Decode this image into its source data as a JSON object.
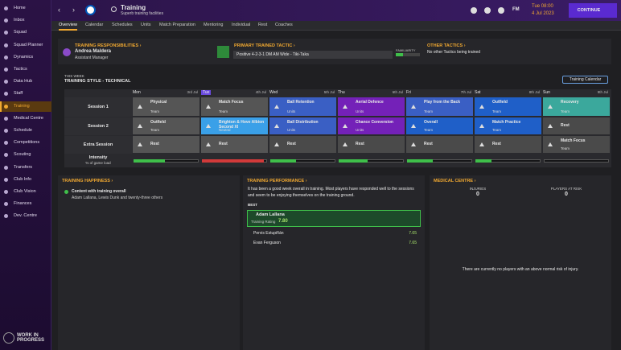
{
  "sidebar": {
    "items": [
      "Home",
      "Inbox",
      "Squad",
      "Squad Planner",
      "Dynamics",
      "Tactics",
      "Data Hub",
      "Staff",
      "Training",
      "Medical Centre",
      "Schedule",
      "Competitions",
      "Scouting",
      "Transfers",
      "Club Info",
      "Club Vision",
      "Finances",
      "Dev. Centre"
    ],
    "active_index": 8,
    "footer": "WORK IN PROGRESS"
  },
  "header": {
    "title": "Training",
    "subtitle": "Superb training facilities",
    "brand": "FM",
    "time": "Tue 08:00",
    "date": "4 Jul 2023",
    "continue": "CONTINUE"
  },
  "tabs": {
    "items": [
      "Overview",
      "Calendar",
      "Schedules",
      "Units",
      "Match Preparation",
      "Mentoring",
      "Individual",
      "Rest",
      "Coaches"
    ],
    "active_index": 0
  },
  "responsibilities": {
    "heading": "TRAINING RESPONSIBILITIES",
    "name": "Andrea Maldera",
    "role": "Assistant Manager"
  },
  "tactic": {
    "heading": "PRIMARY TRAINED TACTIC",
    "name": "Positive 4-2-3-1 DM AM Wide - Tiki-Taka",
    "familiarity_label": "FAMILIARITY",
    "familiarity": 30
  },
  "other_tactics": {
    "heading": "OTHER TACTICS",
    "text": "No other Tactics being trained"
  },
  "week": {
    "label": "THIS WEEK",
    "style": "TRAINING STYLE - TECHNICAL",
    "calendar_button": "Training Calendar",
    "today_index": 1,
    "days": [
      {
        "name": "Mon",
        "date": "3rd Jul"
      },
      {
        "name": "Tue",
        "date": "4th Jul"
      },
      {
        "name": "Wed",
        "date": "5th Jul"
      },
      {
        "name": "Thu",
        "date": "6th Jul"
      },
      {
        "name": "Fri",
        "date": "7th Jul"
      },
      {
        "name": "Sat",
        "date": "8th Jul"
      },
      {
        "name": "Sun",
        "date": "9th Jul"
      }
    ],
    "rows": [
      {
        "label": "Session 1",
        "cells": [
          {
            "title": "Physical",
            "sub": "Team",
            "color": "#555555"
          },
          {
            "title": "Match Focus",
            "sub": "Team",
            "color": "#555555"
          },
          {
            "title": "Ball Retention",
            "sub": "Units",
            "color": "#3a5fc4"
          },
          {
            "title": "Aerial Defence",
            "sub": "Units",
            "color": "#7421b8"
          },
          {
            "title": "Play from the Back",
            "sub": "Team",
            "color": "#3a5fc4"
          },
          {
            "title": "Outfield",
            "sub": "Team",
            "color": "#1f5fc8"
          },
          {
            "title": "Recovery",
            "sub": "Team",
            "color": "#3ba89c"
          }
        ]
      },
      {
        "label": "Session 2",
        "cells": [
          {
            "title": "Outfield",
            "sub": "Team",
            "color": "#555555"
          },
          {
            "title": "Brighton & Hove Albion Second XI",
            "sub": "Neutral",
            "color": "#3aa0e8"
          },
          {
            "title": "Ball Distribution",
            "sub": "Units",
            "color": "#3a5fc4"
          },
          {
            "title": "Chance Conversion",
            "sub": "Units",
            "color": "#7421b8"
          },
          {
            "title": "Overall",
            "sub": "Team",
            "color": "#1f5fc8"
          },
          {
            "title": "Match Practice",
            "sub": "Team",
            "color": "#1f5fc8"
          },
          {
            "title": "Rest",
            "color": "#4a4a4a"
          }
        ]
      },
      {
        "label": "Extra Session",
        "cells": [
          {
            "title": "Rest",
            "color": "#555555"
          },
          {
            "title": "Rest",
            "color": "#555555"
          },
          {
            "title": "Rest",
            "color": "#4a4a4a"
          },
          {
            "title": "Rest",
            "color": "#4a4a4a"
          },
          {
            "title": "Rest",
            "color": "#4a4a4a"
          },
          {
            "title": "Rest",
            "color": "#4a4a4a"
          },
          {
            "title": "Match Focus",
            "sub": "Team",
            "color": "#4a4a4a"
          }
        ]
      }
    ],
    "intensity": {
      "label": "Intensity",
      "sublabel": "% of game load",
      "values": [
        48,
        95,
        40,
        45,
        40,
        25,
        0
      ],
      "colors": [
        "#3fbf4a",
        "#d23a3a",
        "#3fbf4a",
        "#3fbf4a",
        "#3fbf4a",
        "#3fbf4a",
        "#3fbf4a"
      ]
    }
  },
  "happiness": {
    "heading": "TRAINING HAPPINESS",
    "title": "Content with training overall",
    "text": "Adam Lallana, Lewis Dunk and twenty-three others"
  },
  "performance": {
    "heading": "TRAINING PERFORMANCE",
    "text": "It has been a good week overall in training. Most players have responded well to the sessions and seem to be enjoying themselves on the training ground.",
    "best_label": "BEST",
    "best": {
      "name": "Adam Lallana",
      "rating_label": "Training Rating",
      "rating": "7.80"
    },
    "others": [
      {
        "name": "Pervis Estupiñán",
        "rating": "7.65"
      },
      {
        "name": "Evan Ferguson",
        "rating": "7.65"
      }
    ]
  },
  "medical": {
    "heading": "MEDICAL CENTRE",
    "injuries_label": "INJURIES",
    "injuries": "0",
    "risk_label": "PLAYERS AT RISK",
    "risk": "0",
    "text": "There are currently no players with an above normal risk of injury."
  }
}
